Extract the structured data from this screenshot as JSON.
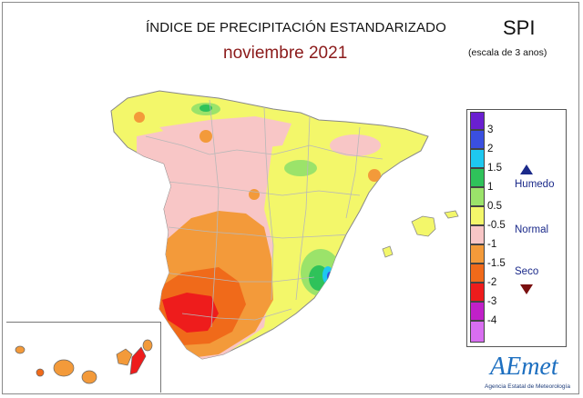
{
  "header": {
    "title": "ÍNDICE DE PRECIPITACIÓN ESTANDARIZADO",
    "subtitle": "noviembre 2021",
    "index_name": "SPI",
    "index_scale": "(escala de 3 anos)"
  },
  "legend": {
    "classes": [
      {
        "tick": "3",
        "color": "#6a1fd0"
      },
      {
        "tick": "2",
        "color": "#3a4fe0"
      },
      {
        "tick": "1.5",
        "color": "#1ec8f0"
      },
      {
        "tick": "1",
        "color": "#2fc25a"
      },
      {
        "tick": "0.5",
        "color": "#9be36a"
      },
      {
        "tick": "-0.5",
        "color": "#f3f76a"
      },
      {
        "tick": "-1",
        "color": "#f8c6c6"
      },
      {
        "tick": "-1.5",
        "color": "#f39a3a"
      },
      {
        "tick": "-2",
        "color": "#f06a1a"
      },
      {
        "tick": "-3",
        "color": "#ee1c1c"
      },
      {
        "tick": "-4",
        "color": "#c020c8"
      },
      {
        "tick": "",
        "color": "#d86ef0"
      }
    ],
    "categories": {
      "wet": "Humedo",
      "normal": "Normal",
      "dry": "Seco"
    }
  },
  "logo": {
    "name": "AEmet",
    "tagline": "Agencia Estatal de Meteorología"
  },
  "colors": {
    "sea": "#ffffff",
    "land_normal": "#f3f76a",
    "land_dry": "#f8c6c6",
    "land_dry_moderate": "#f39a3a",
    "land_dry_severe": "#f06a1a",
    "land_dry_extreme": "#ee1c1c",
    "land_wet": "#9be36a",
    "land_very_wet": "#2fc25a",
    "land_extreme_wet": "#1ec8f0",
    "borders": "#b8b8b8"
  }
}
